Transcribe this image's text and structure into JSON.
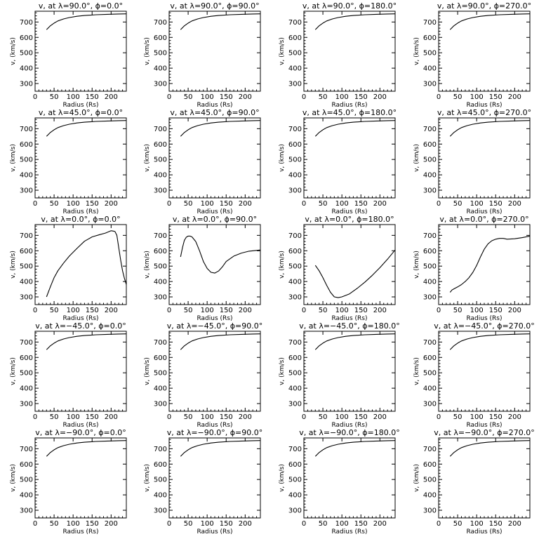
{
  "chart_data": [
    {
      "type": "line",
      "title": "v<sub>r</sub> at λ=90.0°, ϕ=0.0°",
      "title_text": "v, at λ=90.0°, ϕ=0.0°",
      "xlabel": "Radius (Rs)",
      "ylabel": "v, (km/s)",
      "xlim": [
        0,
        240
      ],
      "ylim": [
        250,
        770
      ],
      "xticks": [
        0,
        50,
        100,
        150,
        200
      ],
      "yticks": [
        300,
        400,
        500,
        600,
        700
      ],
      "series": [
        {
          "x": [
            30,
            40,
            50,
            60,
            75,
            90,
            110,
            130,
            160,
            190,
            220,
            240
          ],
          "y": [
            650,
            675,
            693,
            707,
            720,
            729,
            737,
            742,
            747,
            750,
            752,
            753
          ]
        }
      ]
    },
    {
      "type": "line",
      "title_text": "v, at λ=90.0°, ϕ=90.0°",
      "xlabel": "Radius (Rs)",
      "ylabel": "v, (km/s)",
      "xlim": [
        0,
        240
      ],
      "ylim": [
        250,
        770
      ],
      "xticks": [
        0,
        50,
        100,
        150,
        200
      ],
      "yticks": [
        300,
        400,
        500,
        600,
        700
      ],
      "series": [
        {
          "x": [
            30,
            40,
            50,
            60,
            75,
            90,
            110,
            130,
            160,
            190,
            220,
            240
          ],
          "y": [
            650,
            675,
            693,
            707,
            720,
            729,
            737,
            742,
            747,
            750,
            752,
            753
          ]
        }
      ]
    },
    {
      "type": "line",
      "title_text": "v, at λ=90.0°, ϕ=180.0°",
      "xlabel": "Radius (Rs)",
      "ylabel": "v, (km/s)",
      "xlim": [
        0,
        240
      ],
      "ylim": [
        250,
        770
      ],
      "xticks": [
        0,
        50,
        100,
        150,
        200
      ],
      "yticks": [
        300,
        400,
        500,
        600,
        700
      ],
      "series": [
        {
          "x": [
            30,
            40,
            50,
            60,
            75,
            90,
            110,
            130,
            160,
            190,
            220,
            240
          ],
          "y": [
            650,
            675,
            693,
            707,
            720,
            729,
            737,
            742,
            747,
            750,
            752,
            753
          ]
        }
      ]
    },
    {
      "type": "line",
      "title_text": "v, at λ=90.0°, ϕ=270.0°",
      "xlabel": "Radius (Rs)",
      "ylabel": "v, (km/s)",
      "xlim": [
        0,
        240
      ],
      "ylim": [
        250,
        770
      ],
      "xticks": [
        0,
        50,
        100,
        150,
        200
      ],
      "yticks": [
        300,
        400,
        500,
        600,
        700
      ],
      "series": [
        {
          "x": [
            30,
            40,
            50,
            60,
            75,
            90,
            110,
            130,
            160,
            190,
            220,
            240
          ],
          "y": [
            650,
            675,
            693,
            707,
            720,
            729,
            737,
            742,
            747,
            750,
            752,
            753
          ]
        }
      ]
    },
    {
      "type": "line",
      "title_text": "v, at λ=45.0°, ϕ=0.0°",
      "xlabel": "Radius (Rs)",
      "ylabel": "v, (km/s)",
      "xlim": [
        0,
        240
      ],
      "ylim": [
        250,
        770
      ],
      "xticks": [
        0,
        50,
        100,
        150,
        200
      ],
      "yticks": [
        300,
        400,
        500,
        600,
        700
      ],
      "series": [
        {
          "x": [
            30,
            40,
            50,
            60,
            75,
            90,
            110,
            130,
            160,
            190,
            220,
            240
          ],
          "y": [
            650,
            675,
            693,
            707,
            720,
            729,
            737,
            742,
            747,
            750,
            752,
            753
          ]
        }
      ]
    },
    {
      "type": "line",
      "title_text": "v, at λ=45.0°, ϕ=90.0°",
      "xlabel": "Radius (Rs)",
      "ylabel": "v, (km/s)",
      "xlim": [
        0,
        240
      ],
      "ylim": [
        250,
        770
      ],
      "xticks": [
        0,
        50,
        100,
        150,
        200
      ],
      "yticks": [
        300,
        400,
        500,
        600,
        700
      ],
      "series": [
        {
          "x": [
            30,
            40,
            50,
            60,
            75,
            90,
            110,
            130,
            160,
            190,
            220,
            240
          ],
          "y": [
            650,
            675,
            693,
            707,
            720,
            729,
            737,
            742,
            747,
            750,
            752,
            753
          ]
        }
      ]
    },
    {
      "type": "line",
      "title_text": "v, at λ=45.0°, ϕ=180.0°",
      "xlabel": "Radius (Rs)",
      "ylabel": "v, (km/s)",
      "xlim": [
        0,
        240
      ],
      "ylim": [
        250,
        770
      ],
      "xticks": [
        0,
        50,
        100,
        150,
        200
      ],
      "yticks": [
        300,
        400,
        500,
        600,
        700
      ],
      "series": [
        {
          "x": [
            30,
            40,
            50,
            60,
            75,
            90,
            110,
            130,
            160,
            190,
            220,
            240
          ],
          "y": [
            650,
            675,
            693,
            707,
            720,
            729,
            737,
            742,
            747,
            750,
            752,
            753
          ]
        }
      ]
    },
    {
      "type": "line",
      "title_text": "v, at λ=45.0°, ϕ=270.0°",
      "xlabel": "Radius (Rs)",
      "ylabel": "v, (km/s)",
      "xlim": [
        0,
        240
      ],
      "ylim": [
        250,
        770
      ],
      "xticks": [
        0,
        50,
        100,
        150,
        200
      ],
      "yticks": [
        300,
        400,
        500,
        600,
        700
      ],
      "series": [
        {
          "x": [
            30,
            40,
            50,
            60,
            75,
            90,
            110,
            130,
            160,
            190,
            220,
            240
          ],
          "y": [
            650,
            675,
            693,
            707,
            720,
            729,
            737,
            742,
            747,
            750,
            752,
            753
          ]
        }
      ]
    },
    {
      "type": "line",
      "title_text": "v, at λ=0.0°, ϕ=0.0°",
      "xlabel": "Radius (Rs)",
      "ylabel": "v, (km/s)",
      "xlim": [
        0,
        240
      ],
      "ylim": [
        250,
        770
      ],
      "xticks": [
        0,
        50,
        100,
        150,
        200
      ],
      "yticks": [
        300,
        400,
        500,
        600,
        700
      ],
      "series": [
        {
          "x": [
            30,
            40,
            50,
            60,
            75,
            90,
            110,
            130,
            150,
            170,
            185,
            195,
            200,
            205,
            210,
            215,
            220,
            225,
            230,
            235,
            240
          ],
          "y": [
            300,
            365,
            425,
            470,
            520,
            565,
            615,
            662,
            690,
            705,
            715,
            725,
            730,
            728,
            725,
            700,
            620,
            540,
            470,
            420,
            380
          ]
        }
      ]
    },
    {
      "type": "line",
      "title_text": "v, at λ=0.0°, ϕ=90.0°",
      "xlabel": "Radius (Rs)",
      "ylabel": "v, (km/s)",
      "xlim": [
        0,
        240
      ],
      "ylim": [
        250,
        770
      ],
      "xticks": [
        0,
        50,
        100,
        150,
        200
      ],
      "yticks": [
        300,
        400,
        500,
        600,
        700
      ],
      "series": [
        {
          "x": [
            30,
            35,
            40,
            45,
            50,
            55,
            60,
            70,
            80,
            90,
            100,
            110,
            120,
            130,
            140,
            150,
            170,
            190,
            210,
            240
          ],
          "y": [
            560,
            620,
            668,
            688,
            695,
            695,
            690,
            660,
            600,
            530,
            485,
            460,
            455,
            468,
            495,
            530,
            565,
            585,
            597,
            605
          ]
        }
      ]
    },
    {
      "type": "line",
      "title_text": "v, at λ=0.0°, ϕ=180.0°",
      "xlabel": "Radius (Rs)",
      "ylabel": "v, (km/s)",
      "xlim": [
        0,
        240
      ],
      "ylim": [
        250,
        770
      ],
      "xticks": [
        0,
        50,
        100,
        150,
        200
      ],
      "yticks": [
        300,
        400,
        500,
        600,
        700
      ],
      "series": [
        {
          "x": [
            30,
            40,
            50,
            60,
            70,
            80,
            90,
            100,
            120,
            140,
            160,
            180,
            200,
            220,
            240
          ],
          "y": [
            505,
            470,
            425,
            375,
            330,
            300,
            295,
            300,
            320,
            355,
            395,
            440,
            490,
            545,
            605
          ]
        }
      ]
    },
    {
      "type": "line",
      "title_text": "v, at λ=0.0°, ϕ=270.0°",
      "xlabel": "Radius (Rs)",
      "ylabel": "v, (km/s)",
      "xlim": [
        0,
        240
      ],
      "ylim": [
        250,
        770
      ],
      "xticks": [
        0,
        50,
        100,
        150,
        200
      ],
      "yticks": [
        300,
        400,
        500,
        600,
        700
      ],
      "series": [
        {
          "x": [
            30,
            35,
            40,
            50,
            60,
            70,
            80,
            90,
            100,
            110,
            120,
            130,
            140,
            150,
            160,
            170,
            180,
            200,
            220,
            240
          ],
          "y": [
            330,
            345,
            352,
            365,
            380,
            400,
            425,
            460,
            505,
            560,
            610,
            645,
            665,
            675,
            680,
            680,
            675,
            678,
            685,
            695
          ]
        }
      ]
    },
    {
      "type": "line",
      "title_text": "v, at λ=−45.0°, ϕ=0.0°",
      "xlabel": "Radius (Rs)",
      "ylabel": "v, (km/s)",
      "xlim": [
        0,
        240
      ],
      "ylim": [
        250,
        770
      ],
      "xticks": [
        0,
        50,
        100,
        150,
        200
      ],
      "yticks": [
        300,
        400,
        500,
        600,
        700
      ],
      "series": [
        {
          "x": [
            30,
            40,
            50,
            60,
            75,
            90,
            110,
            130,
            160,
            190,
            220,
            240
          ],
          "y": [
            650,
            675,
            693,
            707,
            720,
            729,
            737,
            742,
            747,
            750,
            752,
            753
          ]
        }
      ]
    },
    {
      "type": "line",
      "title_text": "v, at λ=−45.0°, ϕ=90.0°",
      "xlabel": "Radius (Rs)",
      "ylabel": "v, (km/s)",
      "xlim": [
        0,
        240
      ],
      "ylim": [
        250,
        770
      ],
      "xticks": [
        0,
        50,
        100,
        150,
        200
      ],
      "yticks": [
        300,
        400,
        500,
        600,
        700
      ],
      "series": [
        {
          "x": [
            30,
            40,
            50,
            60,
            75,
            90,
            110,
            130,
            160,
            190,
            220,
            240
          ],
          "y": [
            650,
            675,
            693,
            707,
            720,
            729,
            737,
            742,
            747,
            750,
            752,
            753
          ]
        }
      ]
    },
    {
      "type": "line",
      "title_text": "v, at λ=−45.0°, ϕ=180.0°",
      "xlabel": "Radius (Rs)",
      "ylabel": "v, (km/s)",
      "xlim": [
        0,
        240
      ],
      "ylim": [
        250,
        770
      ],
      "xticks": [
        0,
        50,
        100,
        150,
        200
      ],
      "yticks": [
        300,
        400,
        500,
        600,
        700
      ],
      "series": [
        {
          "x": [
            30,
            40,
            50,
            60,
            75,
            90,
            110,
            130,
            160,
            190,
            220,
            240
          ],
          "y": [
            650,
            675,
            693,
            707,
            720,
            729,
            737,
            742,
            747,
            750,
            752,
            753
          ]
        }
      ]
    },
    {
      "type": "line",
      "title_text": "v, at λ=−45.0°, ϕ=270.0°",
      "xlabel": "Radius (Rs)",
      "ylabel": "v, (km/s)",
      "xlim": [
        0,
        240
      ],
      "ylim": [
        250,
        770
      ],
      "xticks": [
        0,
        50,
        100,
        150,
        200
      ],
      "yticks": [
        300,
        400,
        500,
        600,
        700
      ],
      "series": [
        {
          "x": [
            30,
            40,
            50,
            60,
            75,
            90,
            110,
            130,
            160,
            190,
            220,
            240
          ],
          "y": [
            650,
            675,
            693,
            707,
            720,
            729,
            737,
            742,
            747,
            750,
            752,
            753
          ]
        }
      ]
    },
    {
      "type": "line",
      "title_text": "v, at λ=−90.0°, ϕ=0.0°",
      "xlabel": "Radius (Rs)",
      "ylabel": "v, (km/s)",
      "xlim": [
        0,
        240
      ],
      "ylim": [
        250,
        770
      ],
      "xticks": [
        0,
        50,
        100,
        150,
        200
      ],
      "yticks": [
        300,
        400,
        500,
        600,
        700
      ],
      "series": [
        {
          "x": [
            30,
            40,
            50,
            60,
            75,
            90,
            110,
            130,
            160,
            190,
            220,
            240
          ],
          "y": [
            650,
            675,
            693,
            707,
            720,
            729,
            737,
            742,
            747,
            750,
            752,
            753
          ]
        }
      ]
    },
    {
      "type": "line",
      "title_text": "v, at λ=−90.0°, ϕ=90.0°",
      "xlabel": "Radius (Rs)",
      "ylabel": "v, (km/s)",
      "xlim": [
        0,
        240
      ],
      "ylim": [
        250,
        770
      ],
      "xticks": [
        0,
        50,
        100,
        150,
        200
      ],
      "yticks": [
        300,
        400,
        500,
        600,
        700
      ],
      "series": [
        {
          "x": [
            30,
            40,
            50,
            60,
            75,
            90,
            110,
            130,
            160,
            190,
            220,
            240
          ],
          "y": [
            650,
            675,
            693,
            707,
            720,
            729,
            737,
            742,
            747,
            750,
            752,
            753
          ]
        }
      ]
    },
    {
      "type": "line",
      "title_text": "v, at λ=−90.0°, ϕ=180.0°",
      "xlabel": "Radius (Rs)",
      "ylabel": "v, (km/s)",
      "xlim": [
        0,
        240
      ],
      "ylim": [
        250,
        770
      ],
      "xticks": [
        0,
        50,
        100,
        150,
        200
      ],
      "yticks": [
        300,
        400,
        500,
        600,
        700
      ],
      "series": [
        {
          "x": [
            30,
            40,
            50,
            60,
            75,
            90,
            110,
            130,
            160,
            190,
            220,
            240
          ],
          "y": [
            650,
            675,
            693,
            707,
            720,
            729,
            737,
            742,
            747,
            750,
            752,
            753
          ]
        }
      ]
    },
    {
      "type": "line",
      "title_text": "v, at λ=−90.0°, ϕ=270.0°",
      "xlabel": "Radius (Rs)",
      "ylabel": "v, (km/s)",
      "xlim": [
        0,
        240
      ],
      "ylim": [
        250,
        770
      ],
      "xticks": [
        0,
        50,
        100,
        150,
        200
      ],
      "yticks": [
        300,
        400,
        500,
        600,
        700
      ],
      "series": [
        {
          "x": [
            30,
            40,
            50,
            60,
            75,
            90,
            110,
            130,
            160,
            190,
            220,
            240
          ],
          "y": [
            650,
            675,
            693,
            707,
            720,
            729,
            737,
            742,
            747,
            750,
            752,
            753
          ]
        }
      ]
    }
  ]
}
